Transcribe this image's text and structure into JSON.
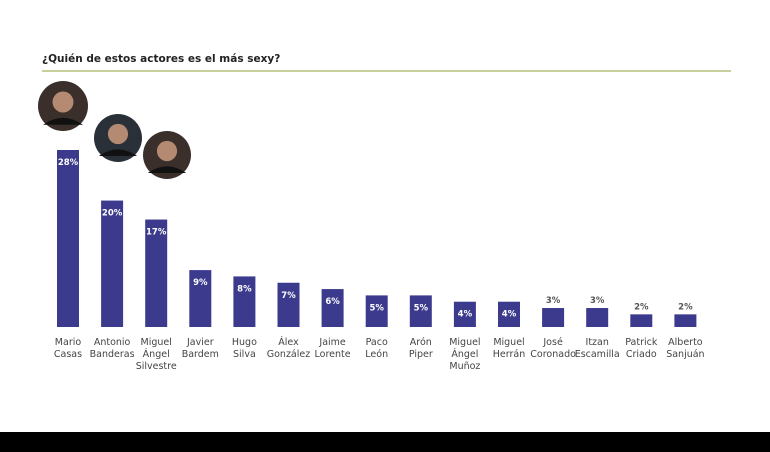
{
  "chart_data": {
    "type": "bar",
    "title": "¿Quién de estos actores es el más sexy?",
    "categories": [
      "Mario Casas",
      "Antonio Banderas",
      "Miguel Ángel Silvestre",
      "Javier Bardem",
      "Hugo Silva",
      "Álex González",
      "Jaime Lorente",
      "Paco León",
      "Arón Piper",
      "Miguel Ángel Muñoz",
      "Miguel Herrán",
      "José Coronado",
      "Itzan Escamilla",
      "Patrick Criado",
      "Alberto Sanjuán"
    ],
    "values": [
      28,
      20,
      17,
      9,
      8,
      7,
      6,
      5,
      5,
      4,
      4,
      3,
      3,
      2,
      2
    ],
    "value_labels": [
      "28%",
      "20%",
      "17%",
      "9%",
      "8%",
      "7%",
      "6%",
      "5%",
      "5%",
      "4%",
      "4%",
      "3%",
      "3%",
      "2%",
      "2%"
    ],
    "ylim": [
      0,
      28
    ],
    "grid": false,
    "bar_color": "#3b3a8c",
    "rule_color": "#c9cf9a",
    "avatars": [
      "Mario Casas photo",
      "Antonio Banderas photo",
      "Miguel Ángel Silvestre photo"
    ]
  }
}
